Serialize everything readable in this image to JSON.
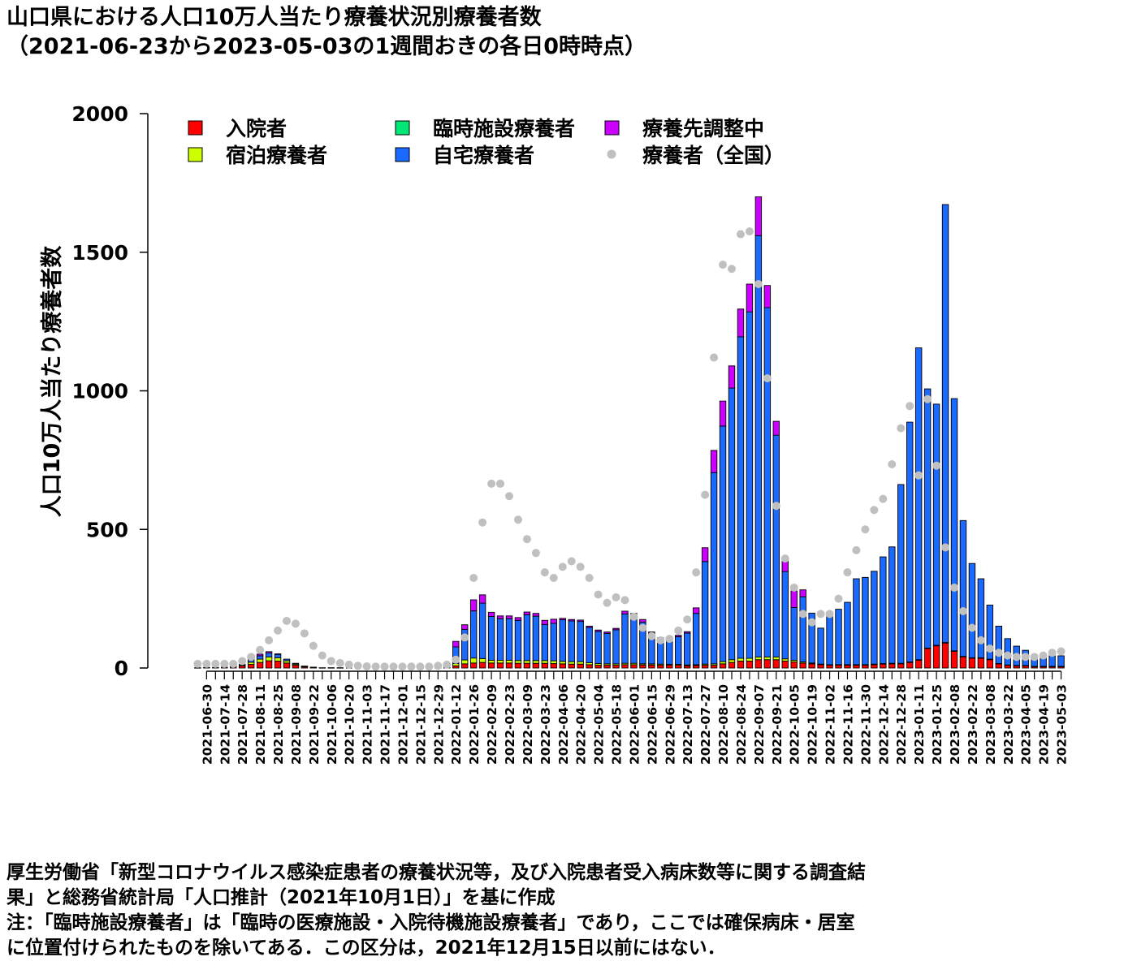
{
  "title_line1": "山口県における人口10万人当たり療養状況別療養者数",
  "title_line2": "（2021-06-23から2023-05-03の1週間おきの各日0時時点）",
  "notes": [
    "厚生労働省「新型コロナウイルス感染症患者の療養状況等，及び入院患者受入病床数等に関する調査結",
    "果」と総務省統計局「人口推計（2021年10月1日）」を基に作成",
    "注：「臨時施設療養者」は「臨時の医療施設・入院待機施設療養者」であり，ここでは確保病床・居室",
    "に位置付けられたものを除いてある．この区分は，2021年12月15日以前にはない．"
  ],
  "chart_data": {
    "type": "bar",
    "stacked": true,
    "ylabel": "人口10万人当たり療養者数",
    "ylim": [
      0,
      2000
    ],
    "yticks": [
      0,
      500,
      1000,
      1500,
      2000
    ],
    "x_start": "2021-06-23",
    "x_step_days": 7,
    "x_count": 98,
    "xtick_labels": [
      "2021-06-30",
      "2021-07-14",
      "2021-07-28",
      "2021-08-11",
      "2021-08-25",
      "2021-09-08",
      "2021-09-22",
      "2021-10-06",
      "2021-10-20",
      "2021-11-03",
      "2021-11-17",
      "2021-12-01",
      "2021-12-15",
      "2021-12-29",
      "2022-01-12",
      "2022-01-26",
      "2022-02-09",
      "2022-02-23",
      "2022-03-09",
      "2022-03-23",
      "2022-04-06",
      "2022-04-20",
      "2022-05-04",
      "2022-05-18",
      "2022-06-01",
      "2022-06-15",
      "2022-06-29",
      "2022-07-13",
      "2022-07-27",
      "2022-08-10",
      "2022-08-24",
      "2022-09-07",
      "2022-09-21",
      "2022-10-05",
      "2022-10-19",
      "2022-11-02",
      "2022-11-16",
      "2022-11-30",
      "2022-12-14",
      "2022-12-28",
      "2023-01-11",
      "2023-01-25",
      "2023-02-08",
      "2023-02-22",
      "2023-03-08",
      "2023-03-22",
      "2023-04-05",
      "2023-04-19",
      "2023-05-03"
    ],
    "legend": [
      {
        "label": "入院者",
        "color": "#ff0000",
        "kind": "square"
      },
      {
        "label": "臨時施設療養者",
        "color": "#00e676",
        "kind": "square"
      },
      {
        "label": "療養先調整中",
        "color": "#cc00ff",
        "kind": "square"
      },
      {
        "label": "宿泊療養者",
        "color": "#ccff00",
        "kind": "square"
      },
      {
        "label": "自宅療養者",
        "color": "#1a6aff",
        "kind": "square"
      },
      {
        "label": "療養者（全国）",
        "color": "#c0c0c0",
        "kind": "dot"
      }
    ],
    "colors": {
      "hospital": "#ff0000",
      "hotel": "#ccff00",
      "temp": "#00e676",
      "home": "#1a6aff",
      "adjust": "#cc00ff",
      "national": "#c0c0c0"
    },
    "hospital": [
      1,
      2,
      2,
      3,
      5,
      8,
      13,
      20,
      26,
      25,
      18,
      10,
      4,
      2,
      1,
      1,
      1,
      0,
      0,
      0,
      0,
      0,
      0,
      0,
      0,
      1,
      1,
      2,
      3,
      8,
      15,
      18,
      20,
      18,
      18,
      18,
      17,
      17,
      17,
      17,
      16,
      15,
      14,
      14,
      12,
      10,
      10,
      10,
      12,
      12,
      11,
      11,
      10,
      10,
      10,
      8,
      9,
      10,
      10,
      15,
      20,
      25,
      25,
      30,
      30,
      30,
      25,
      22,
      18,
      15,
      12,
      10,
      10,
      10,
      10,
      10,
      12,
      14,
      15,
      15,
      20,
      28,
      70,
      80,
      90,
      60,
      40,
      35,
      35,
      30,
      15,
      10,
      8,
      8,
      5,
      5,
      5,
      5
    ],
    "hotel": [
      0,
      0,
      0,
      0,
      1,
      3,
      8,
      12,
      14,
      12,
      8,
      4,
      2,
      1,
      0,
      0,
      0,
      0,
      0,
      0,
      0,
      0,
      0,
      0,
      0,
      0,
      0,
      1,
      2,
      8,
      14,
      18,
      14,
      10,
      10,
      10,
      10,
      10,
      10,
      10,
      10,
      9,
      9,
      9,
      7,
      6,
      5,
      5,
      5,
      5,
      4,
      4,
      4,
      3,
      3,
      3,
      3,
      4,
      5,
      8,
      10,
      10,
      10,
      10,
      10,
      10,
      8,
      6,
      4,
      3,
      2,
      2,
      2,
      2,
      2,
      2,
      2,
      2,
      2,
      2,
      2,
      2,
      2,
      2,
      2,
      2,
      2,
      2,
      2,
      2,
      1,
      1,
      1,
      1,
      1,
      1,
      1,
      1
    ],
    "temp": [
      0,
      0,
      0,
      0,
      0,
      0,
      0,
      0,
      0,
      0,
      0,
      0,
      0,
      0,
      0,
      0,
      0,
      0,
      0,
      0,
      0,
      0,
      0,
      0,
      0,
      0,
      0,
      0,
      0,
      0,
      0,
      0,
      0,
      0,
      0,
      0,
      0,
      0,
      0,
      0,
      0,
      0,
      0,
      0,
      0,
      0,
      0,
      0,
      0,
      0,
      0,
      0,
      0,
      0,
      0,
      0,
      0,
      0,
      0,
      0,
      0,
      0,
      0,
      0,
      0,
      0,
      0,
      0,
      0,
      0,
      0,
      0,
      0,
      0,
      0,
      0,
      0,
      0,
      0,
      0,
      0,
      0,
      0,
      0,
      0,
      0,
      0,
      0,
      0,
      0,
      0,
      0,
      0,
      0,
      0,
      0,
      0,
      0
    ],
    "home": [
      0,
      0,
      0,
      0,
      0,
      2,
      8,
      12,
      14,
      12,
      6,
      3,
      1,
      0,
      0,
      0,
      0,
      0,
      0,
      0,
      0,
      0,
      0,
      0,
      0,
      0,
      0,
      5,
      10,
      60,
      110,
      170,
      200,
      158,
      150,
      150,
      145,
      165,
      160,
      130,
      135,
      150,
      147,
      145,
      127,
      116,
      110,
      123,
      178,
      170,
      150,
      110,
      90,
      85,
      100,
      115,
      185,
      370,
      690,
      850,
      980,
      1160,
      1250,
      1520,
      1260,
      800,
      315,
      190,
      235,
      180,
      130,
      190,
      200,
      225,
      310,
      315,
      335,
      385,
      420,
      645,
      865,
      1125,
      935,
      870,
      1580,
      910,
      490,
      340,
      285,
      195,
      135,
      95,
      70,
      55,
      40,
      38,
      38,
      38
    ],
    "adjust": [
      0,
      0,
      0,
      0,
      0,
      0,
      2,
      6,
      5,
      2,
      0,
      0,
      0,
      0,
      0,
      0,
      0,
      0,
      0,
      0,
      0,
      0,
      0,
      0,
      0,
      0,
      0,
      0,
      0,
      20,
      17,
      40,
      30,
      15,
      10,
      10,
      10,
      10,
      10,
      15,
      15,
      5,
      5,
      5,
      5,
      5,
      5,
      5,
      10,
      10,
      10,
      5,
      5,
      5,
      5,
      5,
      20,
      50,
      80,
      90,
      80,
      100,
      100,
      140,
      80,
      50,
      50,
      60,
      25,
      0,
      0,
      0,
      0,
      0,
      0,
      0,
      0,
      0,
      0,
      0,
      0,
      0,
      0,
      0,
      0,
      0,
      0,
      0,
      0,
      0,
      0,
      0,
      0,
      0,
      0,
      0,
      0,
      0
    ],
    "national": [
      15,
      15,
      15,
      15,
      15,
      25,
      40,
      65,
      100,
      135,
      170,
      160,
      125,
      80,
      45,
      25,
      18,
      12,
      8,
      6,
      5,
      5,
      5,
      5,
      5,
      5,
      5,
      8,
      12,
      30,
      110,
      325,
      525,
      665,
      665,
      620,
      535,
      465,
      415,
      345,
      325,
      365,
      385,
      365,
      325,
      265,
      235,
      255,
      245,
      185,
      145,
      115,
      100,
      105,
      135,
      175,
      345,
      625,
      1120,
      1455,
      1440,
      1565,
      1575,
      1385,
      1045,
      585,
      395,
      290,
      195,
      165,
      195,
      195,
      250,
      345,
      425,
      500,
      570,
      610,
      735,
      865,
      945,
      695,
      970,
      730,
      435,
      290,
      205,
      145,
      100,
      70,
      55,
      45,
      40,
      40,
      40,
      45,
      55,
      60
    ]
  }
}
